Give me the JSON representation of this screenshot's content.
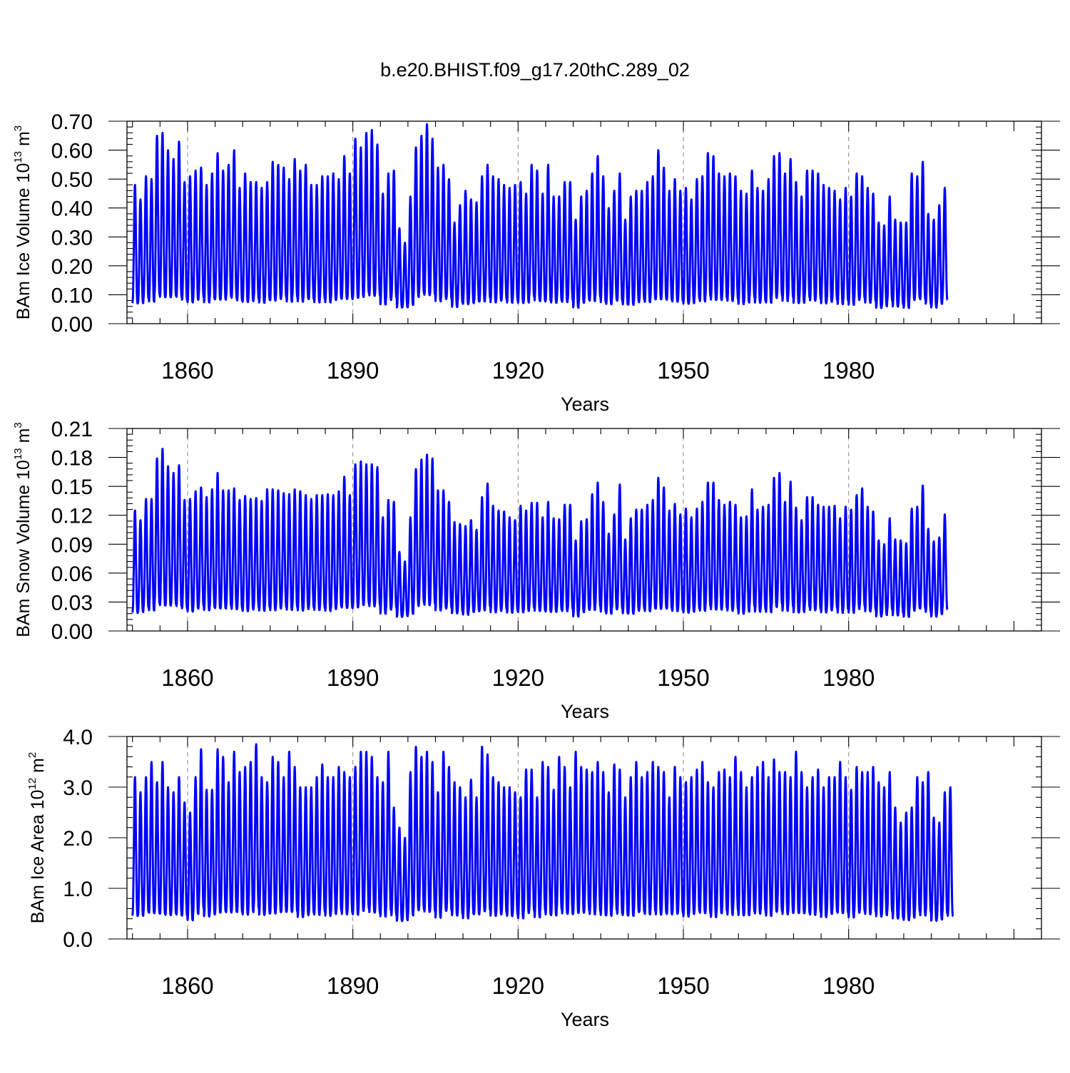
{
  "figure_title": "b.e20.BHIST.f09_g17.20thC.289_02",
  "chart_data": [
    {
      "type": "line",
      "title": "b.e20.BHIST.f09_g17.20thC.289_02",
      "xlabel": "Years",
      "ylabel": "BAm Ice Volume 10",
      "ylabel_exp": "13",
      "ylabel_unit": "m",
      "ylabel_unit_exp": "3",
      "xlim": [
        1849.0,
        2015.0
      ],
      "ylim": [
        0.0,
        0.7
      ],
      "yticks": [
        "0.00",
        "0.10",
        "0.20",
        "0.30",
        "0.40",
        "0.50",
        "0.60",
        "0.70"
      ],
      "xticks": [
        "1860",
        "1890",
        "1920",
        "1950",
        "1980"
      ],
      "series_color": "#0000ff",
      "series": [
        {
          "name": "BAm Ice Volume",
          "x_start": 1850.0,
          "cycle_years": 1.0,
          "annual_max": [
            0.48,
            0.43,
            0.51,
            0.5,
            0.65,
            0.66,
            0.6,
            0.57,
            0.63,
            0.49,
            0.51,
            0.53,
            0.54,
            0.48,
            0.52,
            0.59,
            0.53,
            0.55,
            0.6,
            0.47,
            0.52,
            0.49,
            0.49,
            0.47,
            0.49,
            0.56,
            0.55,
            0.54,
            0.5,
            0.57,
            0.53,
            0.55,
            0.48,
            0.48,
            0.51,
            0.51,
            0.52,
            0.5,
            0.58,
            0.52,
            0.64,
            0.61,
            0.66,
            0.67,
            0.62,
            0.45,
            0.52,
            0.53,
            0.33,
            0.28,
            0.44,
            0.61,
            0.65,
            0.69,
            0.64,
            0.54,
            0.55,
            0.5,
            0.35,
            0.41,
            0.46,
            0.43,
            0.42,
            0.51,
            0.55,
            0.51,
            0.5,
            0.48,
            0.47,
            0.48,
            0.49,
            0.45,
            0.55,
            0.53,
            0.45,
            0.55,
            0.44,
            0.44,
            0.49,
            0.49,
            0.36,
            0.44,
            0.46,
            0.52,
            0.58,
            0.51,
            0.4,
            0.46,
            0.52,
            0.36,
            0.44,
            0.46,
            0.46,
            0.49,
            0.51,
            0.6,
            0.54,
            0.46,
            0.5,
            0.46,
            0.47,
            0.43,
            0.5,
            0.51,
            0.59,
            0.58,
            0.52,
            0.51,
            0.52,
            0.51,
            0.46,
            0.45,
            0.53,
            0.47,
            0.46,
            0.5,
            0.58,
            0.59,
            0.52,
            0.57,
            0.49,
            0.44,
            0.53,
            0.53,
            0.52,
            0.48,
            0.47,
            0.46,
            0.43,
            0.47,
            0.44,
            0.52,
            0.51,
            0.47,
            0.45,
            0.35,
            0.34,
            0.44,
            0.36,
            0.35,
            0.35,
            0.52,
            0.51,
            0.56,
            0.38,
            0.36,
            0.41,
            0.47
          ]
        }
      ]
    },
    {
      "type": "line",
      "xlabel": "Years",
      "ylabel": "BAm Snow Volume 10",
      "ylabel_exp": "13",
      "ylabel_unit": "m",
      "ylabel_unit_exp": "3",
      "xlim": [
        1849.0,
        2015.0
      ],
      "ylim": [
        0.0,
        0.21
      ],
      "yticks": [
        "0.00",
        "0.03",
        "0.06",
        "0.09",
        "0.12",
        "0.15",
        "0.18",
        "0.21"
      ],
      "xticks": [
        "1860",
        "1890",
        "1920",
        "1950",
        "1980"
      ],
      "series_color": "#0000ff",
      "series": [
        {
          "name": "BAm Snow Volume",
          "x_start": 1850.0,
          "cycle_years": 1.0,
          "annual_max": [
            0.125,
            0.115,
            0.137,
            0.137,
            0.179,
            0.189,
            0.171,
            0.164,
            0.172,
            0.136,
            0.137,
            0.145,
            0.149,
            0.139,
            0.147,
            0.164,
            0.146,
            0.146,
            0.148,
            0.136,
            0.14,
            0.137,
            0.138,
            0.135,
            0.147,
            0.147,
            0.146,
            0.143,
            0.142,
            0.147,
            0.145,
            0.141,
            0.137,
            0.141,
            0.141,
            0.142,
            0.141,
            0.145,
            0.16,
            0.141,
            0.173,
            0.176,
            0.173,
            0.173,
            0.17,
            0.118,
            0.136,
            0.134,
            0.082,
            0.072,
            0.118,
            0.168,
            0.178,
            0.183,
            0.179,
            0.146,
            0.146,
            0.134,
            0.113,
            0.111,
            0.109,
            0.115,
            0.105,
            0.139,
            0.153,
            0.13,
            0.125,
            0.124,
            0.118,
            0.115,
            0.13,
            0.125,
            0.133,
            0.133,
            0.118,
            0.134,
            0.117,
            0.116,
            0.131,
            0.131,
            0.094,
            0.114,
            0.116,
            0.142,
            0.154,
            0.134,
            0.101,
            0.121,
            0.152,
            0.095,
            0.117,
            0.126,
            0.126,
            0.131,
            0.136,
            0.159,
            0.149,
            0.125,
            0.132,
            0.121,
            0.127,
            0.118,
            0.127,
            0.134,
            0.154,
            0.154,
            0.136,
            0.131,
            0.134,
            0.131,
            0.118,
            0.119,
            0.147,
            0.126,
            0.129,
            0.131,
            0.159,
            0.164,
            0.134,
            0.155,
            0.128,
            0.115,
            0.139,
            0.139,
            0.131,
            0.129,
            0.129,
            0.13,
            0.117,
            0.129,
            0.126,
            0.141,
            0.148,
            0.129,
            0.124,
            0.094,
            0.09,
            0.117,
            0.095,
            0.094,
            0.091,
            0.127,
            0.129,
            0.151,
            0.106,
            0.093,
            0.097,
            0.121
          ]
        }
      ]
    },
    {
      "type": "line",
      "xlabel": "Years",
      "ylabel": "BAm Ice Area 10",
      "ylabel_exp": "12",
      "ylabel_unit": "m",
      "ylabel_unit_exp": "2",
      "xlim": [
        1849.0,
        2015.0
      ],
      "ylim": [
        0.0,
        4.0
      ],
      "yticks": [
        "0.0",
        "1.0",
        "2.0",
        "3.0",
        "4.0"
      ],
      "xticks": [
        "1860",
        "1890",
        "1920",
        "1950",
        "1980"
      ],
      "series_color": "#0000ff",
      "series": [
        {
          "name": "BAm Ice Area",
          "x_start": 1850.0,
          "cycle_years": 1.0,
          "annual_max": [
            3.2,
            2.9,
            3.2,
            3.5,
            3.1,
            3.5,
            3.0,
            2.9,
            3.2,
            2.7,
            2.5,
            3.2,
            3.75,
            2.95,
            2.95,
            3.75,
            3.6,
            3.1,
            3.7,
            3.3,
            3.4,
            3.5,
            3.85,
            3.2,
            3.1,
            3.6,
            3.5,
            3.2,
            3.7,
            3.4,
            3.0,
            3.0,
            3.0,
            3.2,
            3.45,
            3.2,
            3.2,
            3.4,
            3.3,
            3.2,
            3.4,
            3.7,
            3.7,
            3.6,
            3.2,
            3.1,
            3.7,
            2.6,
            2.2,
            2.0,
            3.3,
            3.8,
            3.6,
            3.7,
            3.5,
            2.9,
            3.7,
            3.4,
            3.1,
            3.0,
            2.8,
            3.15,
            2.8,
            3.8,
            3.65,
            3.2,
            3.1,
            3.0,
            3.0,
            2.9,
            2.8,
            3.35,
            3.35,
            2.8,
            3.5,
            3.4,
            2.95,
            3.6,
            3.4,
            3.0,
            3.7,
            3.4,
            3.35,
            3.3,
            3.5,
            3.3,
            2.9,
            3.45,
            3.35,
            2.8,
            3.2,
            3.5,
            3.2,
            3.3,
            3.5,
            3.4,
            3.3,
            2.8,
            3.4,
            3.2,
            3.1,
            3.2,
            3.35,
            3.5,
            3.1,
            3.0,
            3.3,
            3.35,
            3.2,
            3.6,
            3.3,
            3.0,
            3.2,
            3.4,
            3.5,
            3.2,
            3.55,
            3.3,
            3.3,
            3.2,
            3.7,
            3.3,
            3.0,
            3.2,
            3.35,
            3.0,
            3.2,
            3.2,
            3.5,
            3.2,
            2.95,
            3.4,
            3.3,
            3.3,
            3.4,
            3.1,
            3.0,
            3.3,
            2.6,
            2.3,
            2.5,
            2.6,
            3.2,
            3.1,
            3.3,
            2.4,
            2.3,
            2.9,
            3.0
          ]
        }
      ]
    }
  ]
}
